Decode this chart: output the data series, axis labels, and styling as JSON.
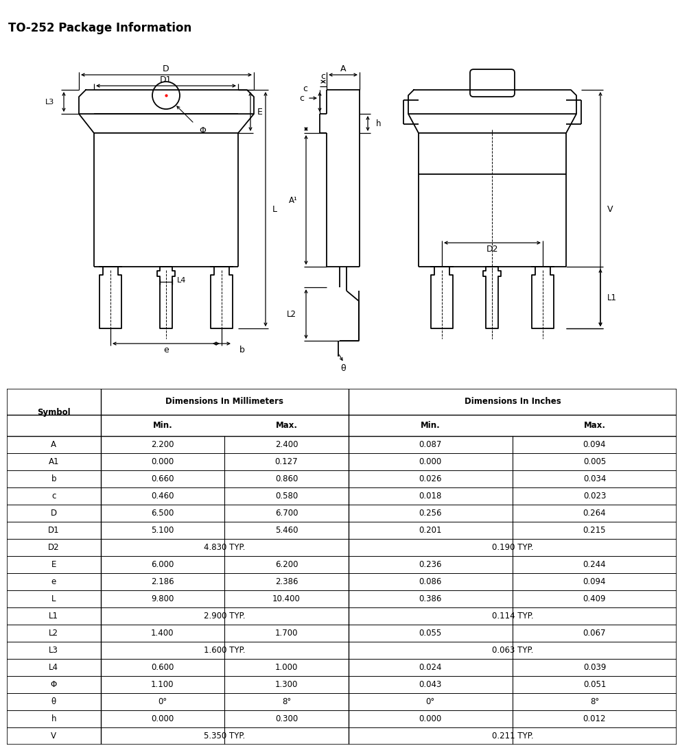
{
  "title": "TO-252 Package Information",
  "table_rows": [
    [
      "A",
      "2.200",
      "2.400",
      "0.087",
      "0.094"
    ],
    [
      "A1",
      "0.000",
      "0.127",
      "0.000",
      "0.005"
    ],
    [
      "b",
      "0.660",
      "0.860",
      "0.026",
      "0.034"
    ],
    [
      "c",
      "0.460",
      "0.580",
      "0.018",
      "0.023"
    ],
    [
      "D",
      "6.500",
      "6.700",
      "0.256",
      "0.264"
    ],
    [
      "D1",
      "5.100",
      "5.460",
      "0.201",
      "0.215"
    ],
    [
      "D2",
      "4.830 TYP.",
      null,
      "0.190 TYP.",
      null
    ],
    [
      "E",
      "6.000",
      "6.200",
      "0.236",
      "0.244"
    ],
    [
      "e",
      "2.186",
      "2.386",
      "0.086",
      "0.094"
    ],
    [
      "L",
      "9.800",
      "10.400",
      "0.386",
      "0.409"
    ],
    [
      "L1",
      "2.900 TYP.",
      null,
      "0.114 TYP.",
      null
    ],
    [
      "L2",
      "1.400",
      "1.700",
      "0.055",
      "0.067"
    ],
    [
      "L3",
      "1.600 TYP.",
      null,
      "0.063 TYP.",
      null
    ],
    [
      "L4",
      "0.600",
      "1.000",
      "0.024",
      "0.039"
    ],
    [
      "Φ",
      "1.100",
      "1.300",
      "0.043",
      "0.051"
    ],
    [
      "θ",
      "0°",
      "8°",
      "0°",
      "8°"
    ],
    [
      "h",
      "0.000",
      "0.300",
      "0.000",
      "0.012"
    ],
    [
      "V",
      "5.350 TYP.",
      null,
      "0.211 TYP.",
      null
    ]
  ],
  "bg_color": "#ffffff",
  "lc": "#000000"
}
